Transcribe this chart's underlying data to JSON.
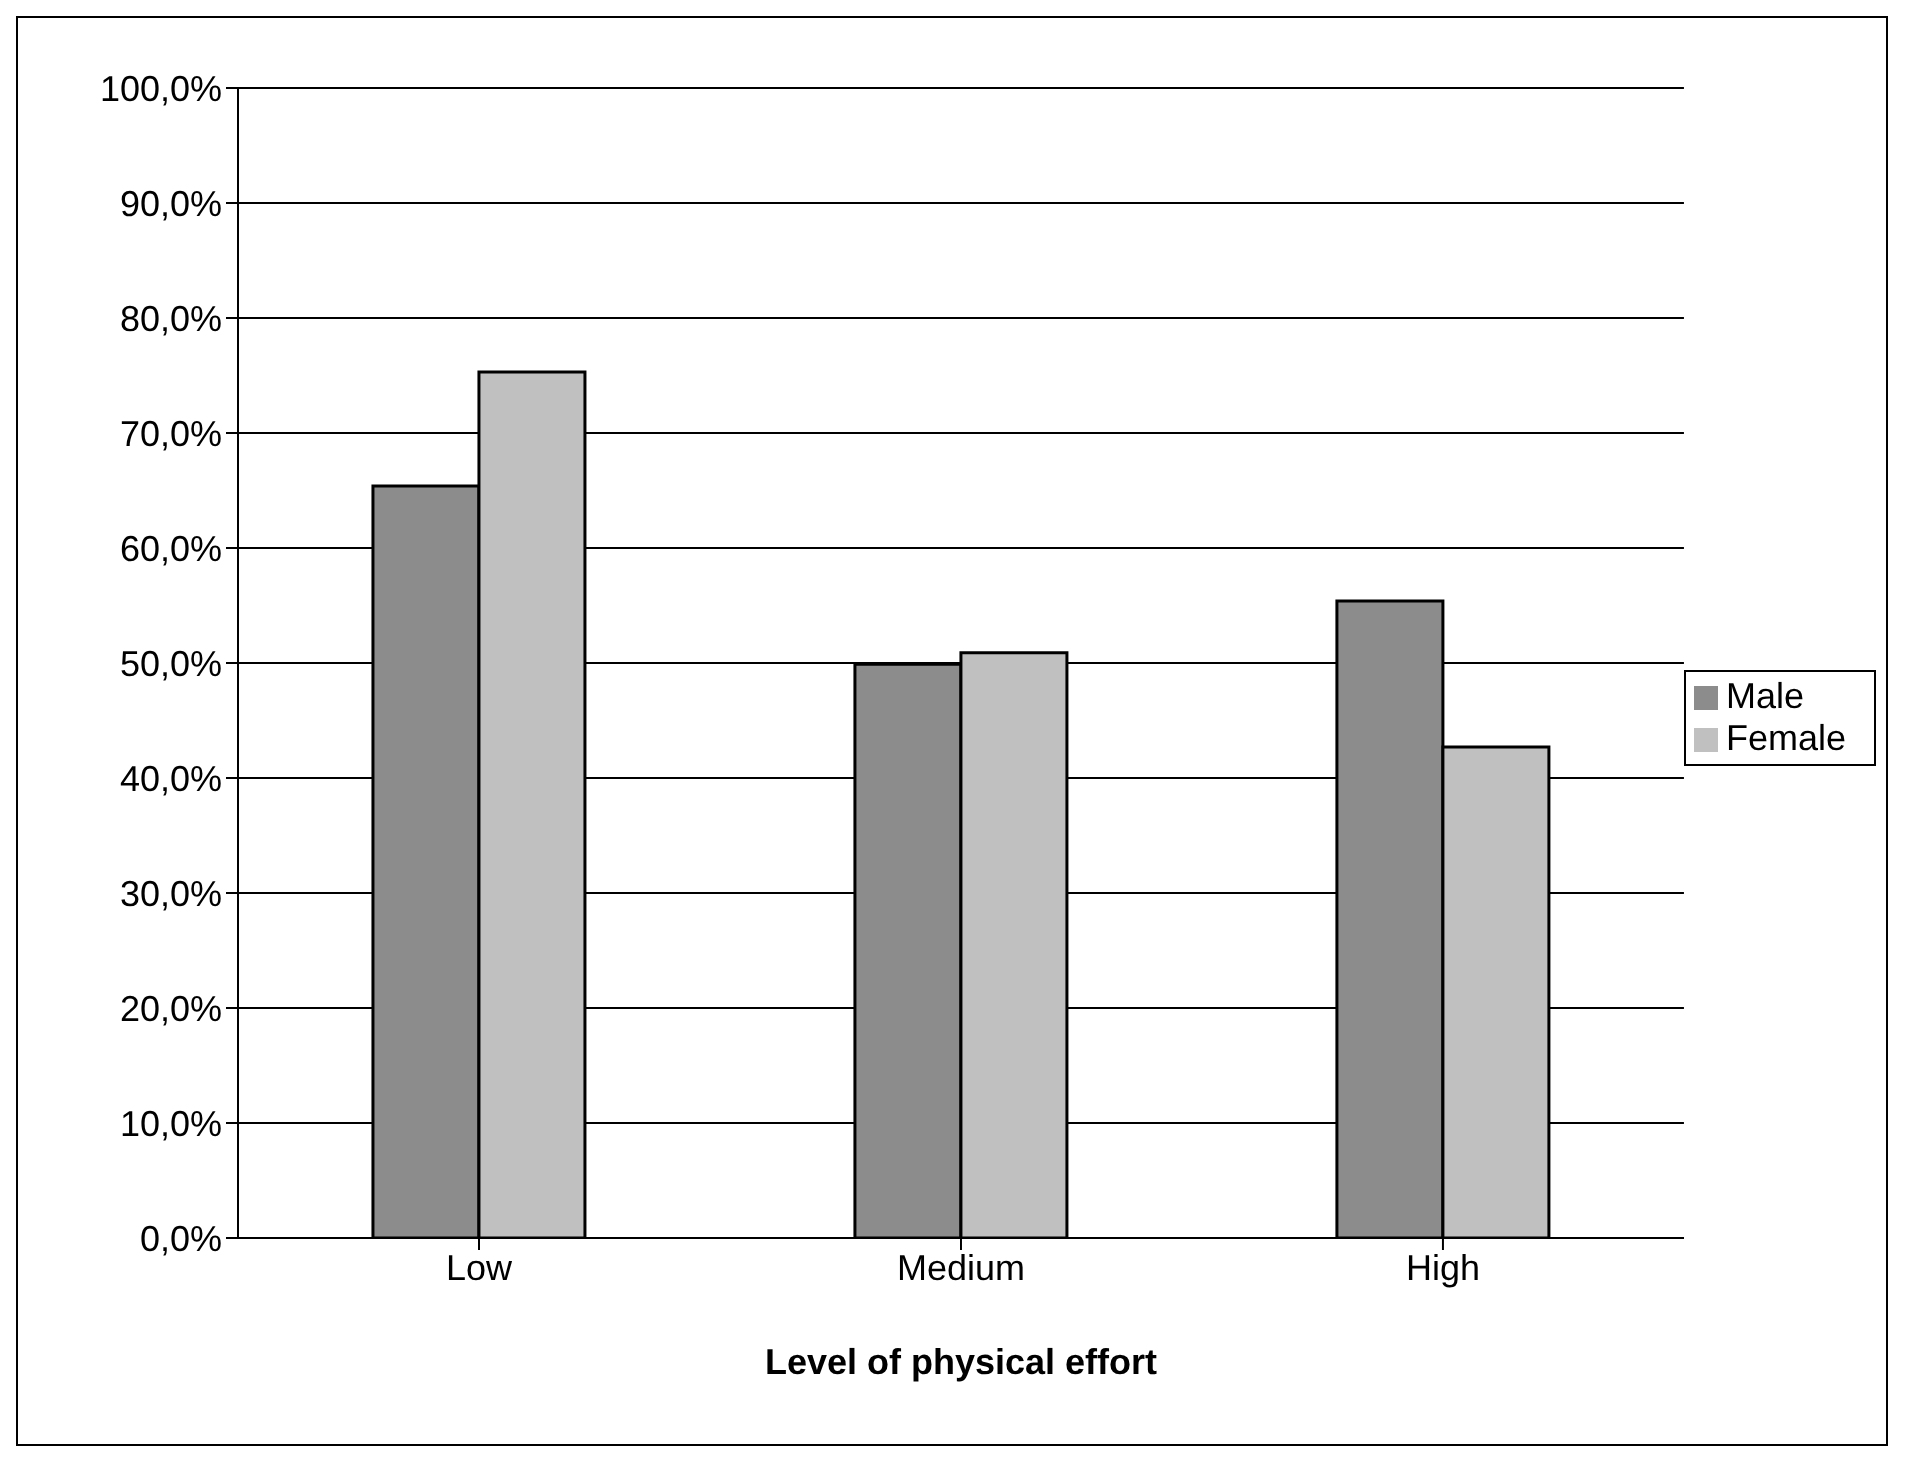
{
  "chart_data": {
    "type": "bar",
    "xlabel": "Level of physical effort",
    "categories": [
      "Low",
      "Medium",
      "High"
    ],
    "series": [
      {
        "name": "Male",
        "color": "#8c8c8c",
        "values": [
          65.4,
          49.9,
          55.4
        ]
      },
      {
        "name": "Female",
        "color": "#c0c0c0",
        "values": [
          75.3,
          50.9,
          42.7
        ]
      }
    ],
    "ylim": [
      0,
      100
    ],
    "yticks": [
      {
        "value": 0,
        "label": "0,0%"
      },
      {
        "value": 10,
        "label": "10,0%"
      },
      {
        "value": 20,
        "label": "20,0%"
      },
      {
        "value": 30,
        "label": "30,0%"
      },
      {
        "value": 40,
        "label": "40,0%"
      },
      {
        "value": 50,
        "label": "50,0%"
      },
      {
        "value": 60,
        "label": "60,0%"
      },
      {
        "value": 70,
        "label": "70,0%"
      },
      {
        "value": 80,
        "label": "80,0%"
      },
      {
        "value": 90,
        "label": "90,0%"
      },
      {
        "value": 100,
        "label": "100,0%"
      }
    ],
    "grid": "y",
    "legend": "right"
  }
}
